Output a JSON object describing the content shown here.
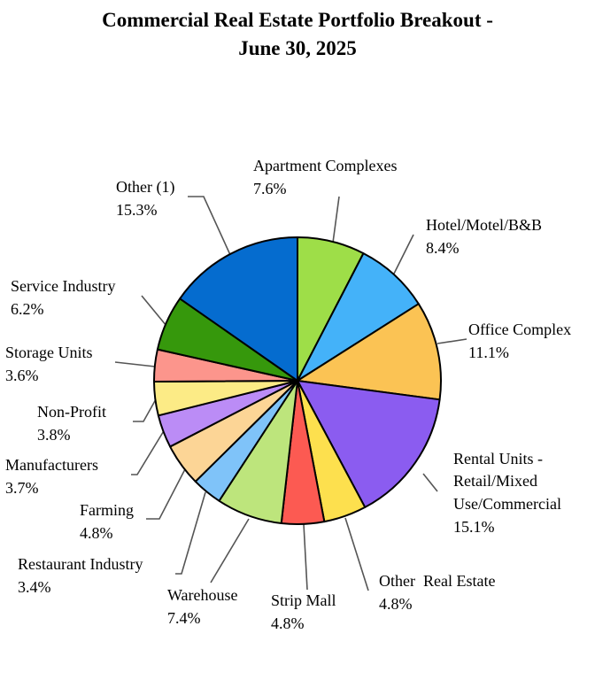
{
  "chart_data": {
    "type": "pie",
    "title_line1": "Commercial Real Estate Portfolio Breakout -",
    "title_line2": "June 30, 2025",
    "slices": [
      {
        "name": "Apartment Complexes",
        "value": 7.6,
        "pct": "7.6%",
        "color": "#9ede48"
      },
      {
        "name": "Hotel/Motel/B&B",
        "value": 8.4,
        "pct": "8.4%",
        "color": "#44b2f9"
      },
      {
        "name": "Office Complex",
        "value": 11.1,
        "pct": "11.1%",
        "color": "#fbc354"
      },
      {
        "name": "Rental Units - Retail/Mixed Use/Commercial",
        "value": 15.1,
        "pct": "15.1%",
        "color": "#8b5cf0"
      },
      {
        "name": "Other  Real Estate",
        "value": 4.8,
        "pct": "4.8%",
        "color": "#fde04e"
      },
      {
        "name": "Strip Mall",
        "value": 4.8,
        "pct": "4.8%",
        "color": "#fc5a52"
      },
      {
        "name": "Warehouse",
        "value": 7.4,
        "pct": "7.4%",
        "color": "#bde57c"
      },
      {
        "name": "Restaurant Industry",
        "value": 3.4,
        "pct": "3.4%",
        "color": "#7fc3f9"
      },
      {
        "name": "Farming",
        "value": 4.8,
        "pct": "4.8%",
        "color": "#fcd596"
      },
      {
        "name": "Manufacturers",
        "value": 3.7,
        "pct": "3.7%",
        "color": "#bb8cf6"
      },
      {
        "name": "Non-Profit",
        "value": 3.8,
        "pct": "3.8%",
        "color": "#fceb86"
      },
      {
        "name": "Storage Units",
        "value": 3.6,
        "pct": "3.6%",
        "color": "#fc958c"
      },
      {
        "name": "Service Industry",
        "value": 6.2,
        "pct": "6.2%",
        "color": "#36980c"
      },
      {
        "name": "Other (1)",
        "value": 15.3,
        "pct": "15.3%",
        "color": "#056ccf"
      }
    ]
  }
}
